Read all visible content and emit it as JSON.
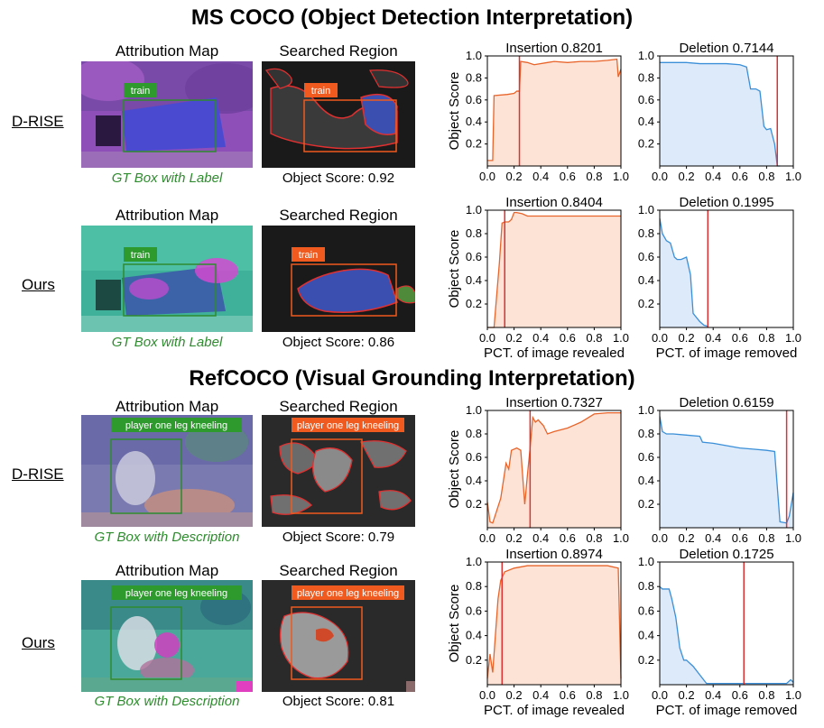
{
  "sections": [
    {
      "title": "MS COCO (Object Detection Interpretation)"
    },
    {
      "title": "RefCOCO (Visual Grounding Interpretation)"
    }
  ],
  "columns": {
    "attribution": "Attribution Map",
    "searched": "Searched Region"
  },
  "axes": {
    "ylabel": "Object Score",
    "xlabel_insertion": "PCT. of image revealed",
    "xlabel_deletion": "PCT. of image removed"
  },
  "rows": [
    {
      "method": "D-RISE",
      "gt_caption": "GT Box with Label",
      "gt_text": "train",
      "object_score": "Object Score: 0.92",
      "insertion_title": "Insertion 0.8201",
      "deletion_title": "Deletion 0.7144"
    },
    {
      "method": "Ours",
      "gt_caption": "GT Box with Label",
      "gt_text": "train",
      "object_score": "Object Score: 0.86",
      "insertion_title": "Insertion 0.8404",
      "deletion_title": "Deletion 0.1995"
    },
    {
      "method": "D-RISE",
      "gt_caption": "GT Box with Description",
      "gt_text": "player one leg kneeling",
      "object_score": "Object Score: 0.79",
      "insertion_title": "Insertion 0.7327",
      "deletion_title": "Deletion 0.6159"
    },
    {
      "method": "Ours",
      "gt_caption": "GT Box with Description",
      "gt_text": "player one leg kneeling",
      "object_score": "Object Score: 0.81",
      "insertion_title": "Insertion 0.8974",
      "deletion_title": "Deletion 0.1725"
    }
  ],
  "colors": {
    "insertion": "#e8642a",
    "insertion_fill": "#fde3d6",
    "deletion": "#3a8fd8",
    "deletion_fill": "#dceafa",
    "marker": "#e03030",
    "gt_green": "#2e8b2e",
    "label_orange": "#f05a1e"
  },
  "chart_data": [
    {
      "type": "area",
      "title": "Insertion 0.8201",
      "ylabel": "Object Score",
      "xlabel": "",
      "xlim": [
        0,
        1
      ],
      "ylim": [
        0,
        1
      ],
      "xticks": [
        "0.0",
        "0.2",
        "0.4",
        "0.6",
        "0.8",
        "1.0"
      ],
      "yticks": [
        "0.2",
        "0.4",
        "0.6",
        "0.8",
        "1.0"
      ],
      "marker_x": 0.24,
      "x": [
        0,
        0.04,
        0.05,
        0.15,
        0.2,
        0.22,
        0.24,
        0.25,
        0.3,
        0.35,
        0.45,
        0.5,
        0.6,
        0.7,
        0.8,
        0.9,
        0.97,
        0.98,
        1.0
      ],
      "y": [
        0.05,
        0.05,
        0.64,
        0.65,
        0.66,
        0.68,
        0.68,
        0.95,
        0.94,
        0.92,
        0.94,
        0.95,
        0.94,
        0.95,
        0.95,
        0.96,
        0.97,
        0.81,
        0.88
      ]
    },
    {
      "type": "area",
      "title": "Deletion 0.7144",
      "ylabel": "",
      "xlabel": "",
      "xlim": [
        0,
        1
      ],
      "ylim": [
        0,
        1
      ],
      "xticks": [
        "0.0",
        "0.2",
        "0.4",
        "0.6",
        "0.8",
        "1.0"
      ],
      "yticks": [],
      "marker_x": 0.88,
      "x": [
        0,
        0.1,
        0.2,
        0.3,
        0.4,
        0.5,
        0.6,
        0.65,
        0.68,
        0.72,
        0.75,
        0.78,
        0.8,
        0.83,
        0.86,
        0.88,
        0.9
      ],
      "y": [
        0.94,
        0.94,
        0.94,
        0.93,
        0.93,
        0.93,
        0.92,
        0.9,
        0.7,
        0.7,
        0.68,
        0.36,
        0.33,
        0.34,
        0.2,
        0.0,
        0.0
      ]
    },
    {
      "type": "area",
      "title": "Insertion 0.8404",
      "ylabel": "Object Score",
      "xlabel": "PCT. of image revealed",
      "xlim": [
        0,
        1
      ],
      "ylim": [
        0,
        1
      ],
      "xticks": [
        "0.0",
        "0.2",
        "0.4",
        "0.6",
        "0.8",
        "1.0"
      ],
      "yticks": [
        "0.2",
        "0.4",
        "0.6",
        "0.8",
        "1.0"
      ],
      "marker_x": 0.13,
      "x": [
        0,
        0.05,
        0.09,
        0.11,
        0.13,
        0.16,
        0.18,
        0.2,
        0.22,
        0.26,
        0.3,
        0.4,
        0.6,
        0.8,
        1.0
      ],
      "y": [
        0.0,
        0.0,
        0.55,
        0.89,
        0.9,
        0.9,
        0.92,
        0.98,
        0.98,
        0.97,
        0.95,
        0.95,
        0.95,
        0.95,
        0.95
      ]
    },
    {
      "type": "area",
      "title": "Deletion 0.1995",
      "ylabel": "",
      "xlabel": "PCT. of image removed",
      "xlim": [
        0,
        1
      ],
      "ylim": [
        0,
        1
      ],
      "xticks": [
        "0.0",
        "0.2",
        "0.4",
        "0.6",
        "0.8",
        "1.0"
      ],
      "yticks": [],
      "marker_x": 0.36,
      "x": [
        0,
        0.02,
        0.05,
        0.08,
        0.11,
        0.13,
        0.16,
        0.2,
        0.23,
        0.25,
        0.3,
        0.33,
        0.36
      ],
      "y": [
        0.93,
        0.8,
        0.74,
        0.72,
        0.6,
        0.58,
        0.58,
        0.6,
        0.45,
        0.12,
        0.05,
        0.02,
        0.01
      ]
    },
    {
      "type": "area",
      "title": "Insertion 0.7327",
      "ylabel": "Object Score",
      "xlabel": "",
      "xlim": [
        0,
        1
      ],
      "ylim": [
        0,
        1
      ],
      "xticks": [
        "0.0",
        "0.2",
        "0.4",
        "0.6",
        "0.8",
        "1.0"
      ],
      "yticks": [
        "0.2",
        "0.4",
        "0.6",
        "0.8",
        "1.0"
      ],
      "marker_x": 0.32,
      "x": [
        0,
        0.02,
        0.04,
        0.1,
        0.14,
        0.16,
        0.18,
        0.22,
        0.25,
        0.28,
        0.3,
        0.32,
        0.34,
        0.36,
        0.38,
        0.42,
        0.45,
        0.5,
        0.6,
        0.7,
        0.8,
        0.9,
        1.0
      ],
      "y": [
        0.22,
        0.05,
        0.04,
        0.25,
        0.55,
        0.5,
        0.66,
        0.68,
        0.66,
        0.2,
        0.45,
        0.68,
        0.94,
        0.9,
        0.92,
        0.87,
        0.8,
        0.82,
        0.85,
        0.9,
        0.97,
        0.98,
        0.98
      ]
    },
    {
      "type": "area",
      "title": "Deletion 0.6159",
      "ylabel": "",
      "xlabel": "",
      "xlim": [
        0,
        1
      ],
      "ylim": [
        0,
        1
      ],
      "xticks": [
        "0.0",
        "0.2",
        "0.4",
        "0.6",
        "0.8",
        "1.0"
      ],
      "yticks": [],
      "marker_x": 0.95,
      "x": [
        0,
        0.02,
        0.05,
        0.1,
        0.2,
        0.3,
        0.32,
        0.4,
        0.5,
        0.6,
        0.7,
        0.8,
        0.86,
        0.9,
        0.95,
        0.97,
        1.0
      ],
      "y": [
        0.95,
        0.82,
        0.8,
        0.8,
        0.79,
        0.78,
        0.73,
        0.72,
        0.7,
        0.68,
        0.67,
        0.66,
        0.65,
        0.05,
        0.04,
        0.1,
        0.3
      ]
    },
    {
      "type": "area",
      "title": "Insertion 0.8974",
      "ylabel": "Object Score",
      "xlabel": "PCT. of image revealed",
      "xlim": [
        0,
        1
      ],
      "ylim": [
        0,
        1
      ],
      "xticks": [
        "0.0",
        "0.2",
        "0.4",
        "0.6",
        "0.8",
        "1.0"
      ],
      "yticks": [
        "0.2",
        "0.4",
        "0.6",
        "0.8",
        "1.0"
      ],
      "marker_x": 0.11,
      "x": [
        0,
        0.02,
        0.04,
        0.06,
        0.08,
        0.1,
        0.13,
        0.2,
        0.3,
        0.4,
        0.5,
        0.6,
        0.7,
        0.8,
        0.9,
        0.98,
        1.0
      ],
      "y": [
        0.05,
        0.25,
        0.1,
        0.4,
        0.7,
        0.85,
        0.92,
        0.95,
        0.97,
        0.97,
        0.97,
        0.97,
        0.97,
        0.97,
        0.97,
        0.95,
        0.05
      ]
    },
    {
      "type": "area",
      "title": "Deletion 0.1725",
      "ylabel": "",
      "xlabel": "PCT. of image removed",
      "xlim": [
        0,
        1
      ],
      "ylim": [
        0,
        1
      ],
      "xticks": [
        "0.0",
        "0.2",
        "0.4",
        "0.6",
        "0.8",
        "1.0"
      ],
      "yticks": [],
      "marker_x": 0.63,
      "x": [
        0,
        0.02,
        0.07,
        0.09,
        0.12,
        0.15,
        0.18,
        0.2,
        0.25,
        0.3,
        0.35,
        0.4,
        0.6,
        0.8,
        0.95,
        0.98,
        1.0
      ],
      "y": [
        0.8,
        0.78,
        0.78,
        0.7,
        0.55,
        0.3,
        0.2,
        0.2,
        0.15,
        0.08,
        0.01,
        0.01,
        0.01,
        0.01,
        0.01,
        0.04,
        0.02
      ]
    }
  ]
}
